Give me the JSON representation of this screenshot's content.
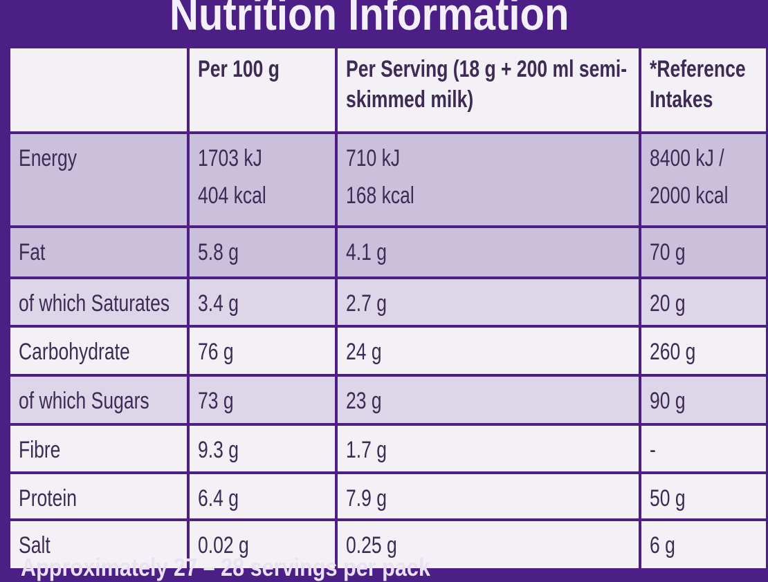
{
  "header": {
    "title": "Nutrition Information"
  },
  "table": {
    "columns": [
      "Per 100 g",
      "Per Serving (18 g + 200 ml semi-skimmed milk)",
      "*Reference Intakes"
    ],
    "rows": [
      [
        "Energy",
        [
          "1703 kJ",
          "404 kcal"
        ],
        [
          "710 kJ",
          "168 kcal"
        ],
        [
          "8400 kJ /",
          "2000 kcal"
        ]
      ],
      [
        "Fat",
        "5.8 g",
        "4.1 g",
        "70 g"
      ],
      [
        "of which Saturates",
        "3.4 g",
        "2.7 g",
        "20 g"
      ],
      [
        "Carbohydrate",
        "76 g",
        "24 g",
        "260 g"
      ],
      [
        "of which Sugars",
        "73 g",
        "23 g",
        "90 g"
      ],
      [
        "Fibre",
        "9.3 g",
        "1.7 g",
        "-"
      ],
      [
        "Protein",
        "6.4 g",
        "7.9 g",
        "50 g"
      ],
      [
        "Salt",
        "0.02 g",
        "0.25 g",
        "6 g"
      ]
    ]
  },
  "footer": {
    "note": "Approximately 27 – 28 servings per pack"
  }
}
